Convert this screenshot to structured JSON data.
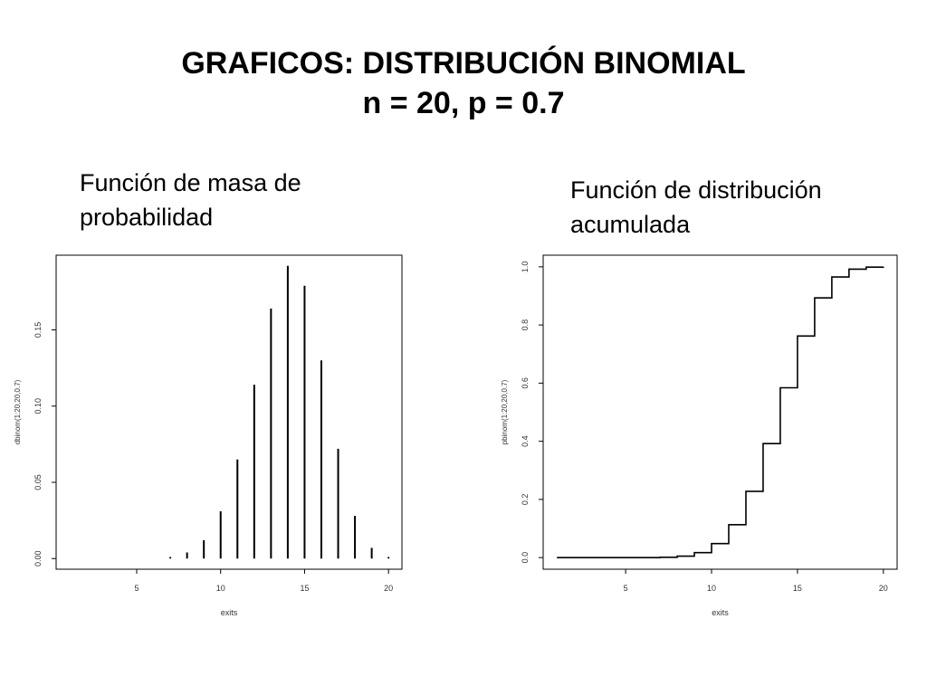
{
  "title": {
    "line1": "GRAFICOS: DISTRIBUCIÓN BINOMIAL",
    "line2": "n = 20, p = 0.7"
  },
  "subtitles": {
    "left": [
      "Función de masa de",
      "probabilidad"
    ],
    "right": [
      "Función de distribución",
      "acumulada"
    ]
  },
  "chart_data": [
    {
      "type": "bar",
      "subtype": "vertical-lines",
      "x": [
        1,
        2,
        3,
        4,
        5,
        6,
        7,
        8,
        9,
        10,
        11,
        12,
        13,
        14,
        15,
        16,
        17,
        18,
        19,
        20
      ],
      "values": [
        0.0,
        0.0,
        0.0,
        0.0,
        0.0,
        0.0,
        0.001,
        0.004,
        0.012,
        0.031,
        0.065,
        0.114,
        0.164,
        0.192,
        0.179,
        0.13,
        0.072,
        0.028,
        0.007,
        0.001
      ],
      "xlabel": "exits",
      "ylabel": "dbinom(1:20,20,0.7)",
      "xticks": [
        5,
        10,
        15,
        20
      ],
      "yticks": [
        0.0,
        0.05,
        0.1,
        0.15
      ],
      "ytick_labels": [
        "0.00",
        "0.05",
        "0.10",
        "0.15"
      ],
      "xlim": [
        0.2,
        20.8
      ],
      "ylim": [
        -0.007,
        0.199
      ],
      "grid": false
    },
    {
      "type": "line",
      "subtype": "step",
      "x": [
        1,
        2,
        3,
        4,
        5,
        6,
        7,
        8,
        9,
        10,
        11,
        12,
        13,
        14,
        15,
        16,
        17,
        18,
        19,
        20
      ],
      "values": [
        0.0,
        0.0,
        0.0,
        0.0,
        0.0,
        0.0,
        0.001,
        0.005,
        0.017,
        0.048,
        0.113,
        0.228,
        0.392,
        0.584,
        0.762,
        0.893,
        0.965,
        0.992,
        0.999,
        1.0
      ],
      "xlabel": "exits",
      "ylabel": "pbinom(1:20,20,0.7)",
      "xticks": [
        5,
        10,
        15,
        20
      ],
      "yticks": [
        0.0,
        0.2,
        0.4,
        0.6,
        0.8,
        1.0
      ],
      "ytick_labels": [
        "0.0",
        "0.2",
        "0.4",
        "0.6",
        "0.8",
        "1.0"
      ],
      "xlim": [
        0.2,
        20.8
      ],
      "ylim": [
        -0.04,
        1.04
      ],
      "grid": false
    }
  ]
}
